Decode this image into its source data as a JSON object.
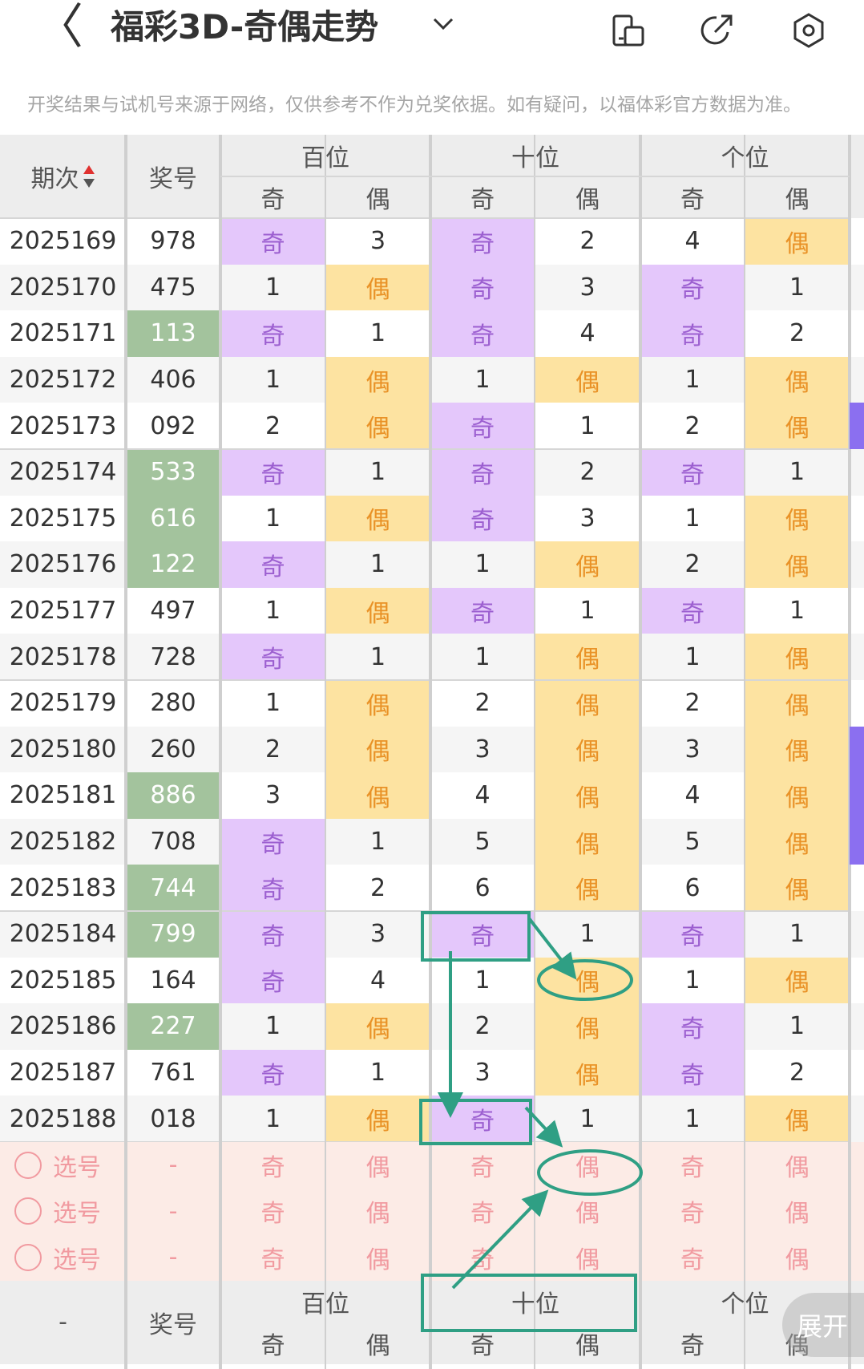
{
  "header": {
    "back_label": "〈",
    "title": "福彩3D-奇偶走势",
    "icons": [
      "chevron-down-icon",
      "layout-toggle-icon",
      "share-icon",
      "settings-icon"
    ]
  },
  "notice": "开奖结果与试机号来源于网络，仅供参考不作为兑奖依据。如有疑问，以福体彩官方数据为准。",
  "table": {
    "col_period": "期次",
    "col_number": "奖号",
    "groups": [
      "百位",
      "十位",
      "个位"
    ],
    "sub": [
      "奇",
      "偶"
    ],
    "rows": [
      {
        "period": "2025169",
        "num": "978",
        "hl": false,
        "cells": [
          "奇",
          "3",
          "奇",
          "2",
          "4",
          "偶"
        ]
      },
      {
        "period": "2025170",
        "num": "475",
        "hl": false,
        "cells": [
          "1",
          "偶",
          "奇",
          "3",
          "奇",
          "1"
        ]
      },
      {
        "period": "2025171",
        "num": "113",
        "hl": true,
        "cells": [
          "奇",
          "1",
          "奇",
          "4",
          "奇",
          "2"
        ]
      },
      {
        "period": "2025172",
        "num": "406",
        "hl": false,
        "cells": [
          "1",
          "偶",
          "1",
          "偶",
          "1",
          "偶"
        ]
      },
      {
        "period": "2025173",
        "num": "092",
        "hl": false,
        "cells": [
          "2",
          "偶",
          "奇",
          "1",
          "2",
          "偶"
        ]
      },
      {
        "period": "2025174",
        "num": "533",
        "hl": true,
        "cells": [
          "奇",
          "1",
          "奇",
          "2",
          "奇",
          "1"
        ]
      },
      {
        "period": "2025175",
        "num": "616",
        "hl": true,
        "cells": [
          "1",
          "偶",
          "奇",
          "3",
          "1",
          "偶"
        ]
      },
      {
        "period": "2025176",
        "num": "122",
        "hl": true,
        "cells": [
          "奇",
          "1",
          "1",
          "偶",
          "2",
          "偶"
        ]
      },
      {
        "period": "2025177",
        "num": "497",
        "hl": false,
        "cells": [
          "1",
          "偶",
          "奇",
          "1",
          "奇",
          "1"
        ]
      },
      {
        "period": "2025178",
        "num": "728",
        "hl": false,
        "cells": [
          "奇",
          "1",
          "1",
          "偶",
          "1",
          "偶"
        ]
      },
      {
        "period": "2025179",
        "num": "280",
        "hl": false,
        "cells": [
          "1",
          "偶",
          "2",
          "偶",
          "2",
          "偶"
        ]
      },
      {
        "period": "2025180",
        "num": "260",
        "hl": false,
        "cells": [
          "2",
          "偶",
          "3",
          "偶",
          "3",
          "偶"
        ]
      },
      {
        "period": "2025181",
        "num": "886",
        "hl": true,
        "cells": [
          "3",
          "偶",
          "4",
          "偶",
          "4",
          "偶"
        ]
      },
      {
        "period": "2025182",
        "num": "708",
        "hl": false,
        "cells": [
          "奇",
          "1",
          "5",
          "偶",
          "5",
          "偶"
        ]
      },
      {
        "period": "2025183",
        "num": "744",
        "hl": true,
        "cells": [
          "奇",
          "2",
          "6",
          "偶",
          "6",
          "偶"
        ]
      },
      {
        "period": "2025184",
        "num": "799",
        "hl": true,
        "cells": [
          "奇",
          "3",
          "奇",
          "1",
          "奇",
          "1"
        ]
      },
      {
        "period": "2025185",
        "num": "164",
        "hl": false,
        "cells": [
          "奇",
          "4",
          "1",
          "偶",
          "1",
          "偶"
        ]
      },
      {
        "period": "2025186",
        "num": "227",
        "hl": true,
        "cells": [
          "1",
          "偶",
          "2",
          "偶",
          "奇",
          "1"
        ]
      },
      {
        "period": "2025187",
        "num": "761",
        "hl": false,
        "cells": [
          "奇",
          "1",
          "3",
          "偶",
          "奇",
          "2"
        ]
      },
      {
        "period": "2025188",
        "num": "018",
        "hl": false,
        "cells": [
          "1",
          "偶",
          "奇",
          "1",
          "1",
          "偶"
        ]
      }
    ],
    "select_rows": [
      {
        "label": "选号",
        "num": "-"
      },
      {
        "label": "选号",
        "num": "-"
      },
      {
        "label": "选号",
        "num": "-"
      }
    ],
    "footer_period": "-",
    "footer_number": "奖号"
  },
  "expand_label": "展开",
  "colors": {
    "odd_bg": "#e4c7fb",
    "even_bg": "#fde3a1",
    "hot_num_bg": "#a3c39d",
    "annotation": "#2f9f84"
  }
}
